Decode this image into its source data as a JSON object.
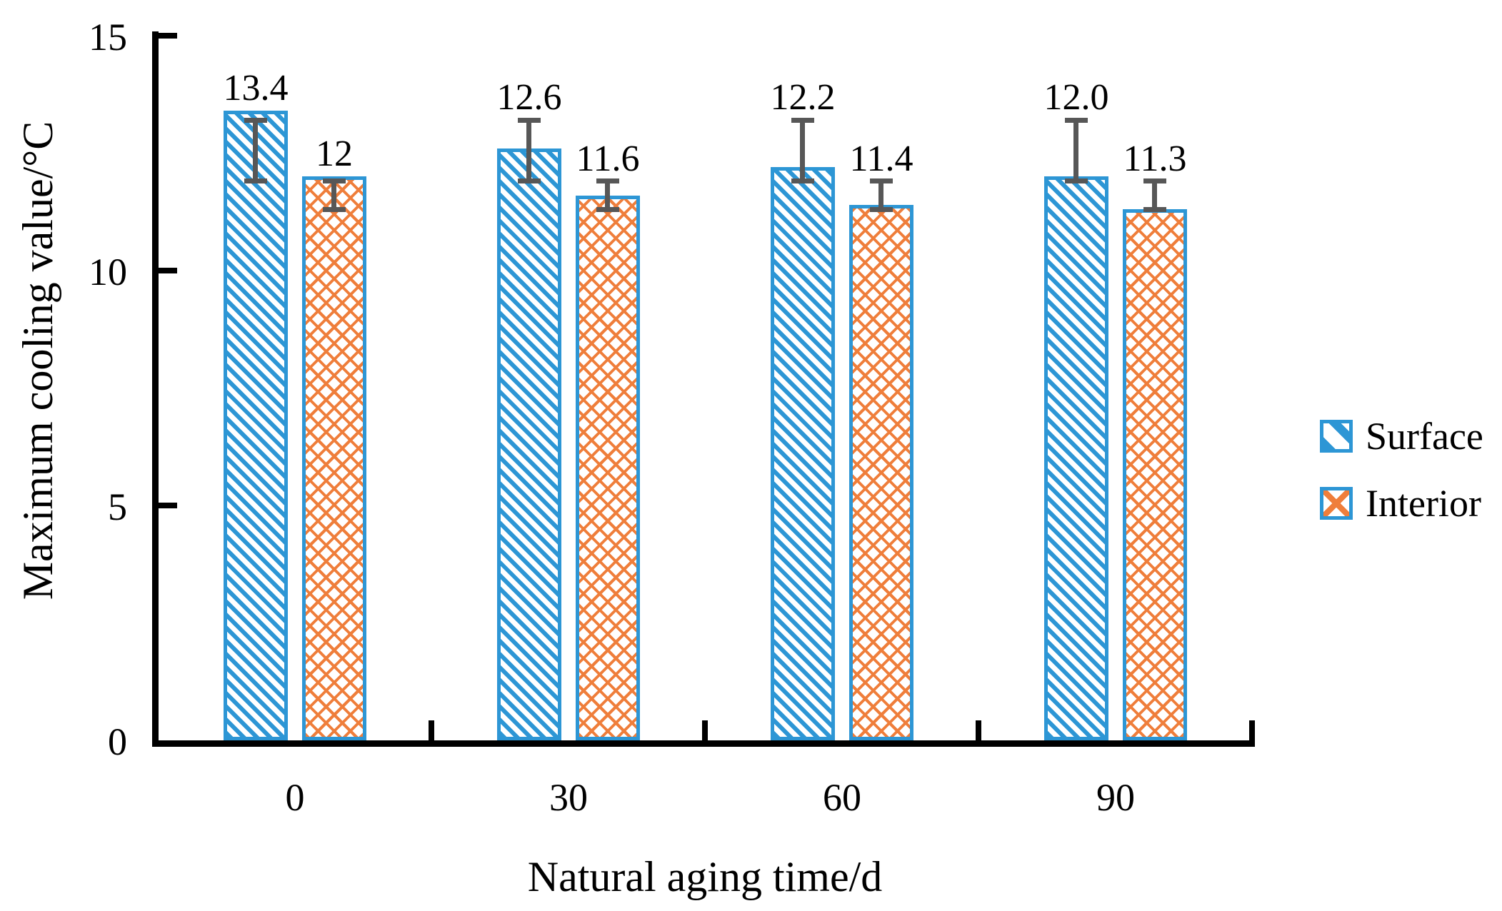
{
  "chart_data": {
    "type": "bar",
    "title": "",
    "xlabel": "Natural aging time/d",
    "ylabel": "Maximum cooling value/°C",
    "categories": [
      "0",
      "30",
      "60",
      "90"
    ],
    "series": [
      {
        "name": "Surface",
        "pattern": "diagonal-hatch",
        "color": "#2D96D5",
        "border_color": "#2D96D5",
        "values": [
          13.4,
          12.6,
          12.2,
          12.0
        ],
        "value_labels": [
          "13.4",
          "12.6",
          "12.2",
          "12.0"
        ],
        "error_span": {
          "high": 13.2,
          "low": 11.9
        }
      },
      {
        "name": "Interior",
        "pattern": "cross-hatch",
        "color": "#EF7E3B",
        "border_color": "#2D96D5",
        "values": [
          12,
          11.6,
          11.4,
          11.3
        ],
        "value_labels": [
          "12",
          "11.6",
          "11.4",
          "11.3"
        ],
        "error_span": {
          "high": 11.9,
          "low": 11.3
        }
      }
    ],
    "ylim": [
      0,
      15
    ],
    "y_ticks": [
      "0",
      "5",
      "10",
      "15"
    ],
    "grid": false,
    "legend": {
      "position": "right",
      "entries": [
        "Surface",
        "Interior"
      ]
    },
    "error_bar_color": "#575757",
    "axis_color": "#000000",
    "text_color": "#000000",
    "background": "#ffffff"
  }
}
